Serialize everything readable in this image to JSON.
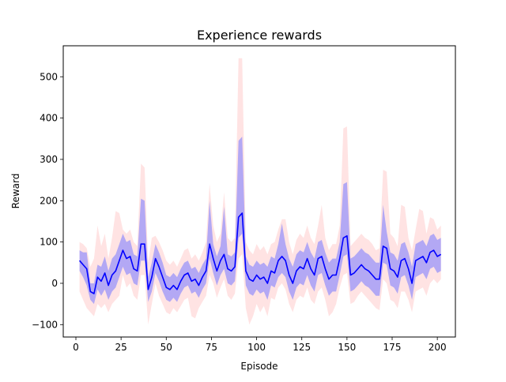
{
  "chart_data": {
    "type": "line",
    "title": "Experience rewards",
    "xlabel": "Episode",
    "ylabel": "Reward",
    "xlim": [
      -7,
      210
    ],
    "ylim": [
      -130,
      575
    ],
    "xticks": [
      0,
      25,
      50,
      75,
      100,
      125,
      150,
      175,
      200
    ],
    "yticks": [
      -100,
      0,
      100,
      200,
      300,
      400,
      500
    ],
    "xticklabels": [
      "0",
      "25",
      "50",
      "75",
      "100",
      "125",
      "150",
      "175",
      "200"
    ],
    "yticklabels": [
      "−100",
      "0",
      "100",
      "200",
      "300",
      "400",
      "500"
    ],
    "grid": false,
    "legend": "none",
    "colors": {
      "mean_line": "#0000ff",
      "std_band": "#8080ff",
      "minmax_band": "#ffc0c0"
    },
    "x": [
      2,
      4,
      6,
      8,
      10,
      12,
      14,
      16,
      18,
      20,
      22,
      24,
      26,
      28,
      30,
      32,
      34,
      36,
      38,
      40,
      42,
      44,
      46,
      48,
      50,
      52,
      54,
      56,
      58,
      60,
      62,
      64,
      66,
      68,
      70,
      72,
      74,
      76,
      78,
      80,
      82,
      84,
      86,
      88,
      90,
      92,
      94,
      96,
      98,
      100,
      102,
      104,
      106,
      108,
      110,
      112,
      114,
      116,
      118,
      120,
      122,
      124,
      126,
      128,
      130,
      132,
      134,
      136,
      138,
      140,
      142,
      144,
      146,
      148,
      150,
      152,
      154,
      156,
      158,
      160,
      162,
      164,
      166,
      168,
      170,
      172,
      174,
      176,
      178,
      180,
      182,
      184,
      186,
      188,
      190,
      192,
      194,
      196,
      198,
      200,
      202
    ],
    "series": [
      {
        "role": "mean",
        "values": [
          55,
          45,
          35,
          -20,
          -25,
          15,
          5,
          25,
          -5,
          20,
          30,
          55,
          80,
          60,
          65,
          35,
          30,
          95,
          95,
          -15,
          15,
          60,
          40,
          15,
          -10,
          -15,
          -5,
          -15,
          5,
          20,
          25,
          5,
          10,
          -5,
          15,
          30,
          95,
          60,
          30,
          55,
          70,
          35,
          30,
          40,
          160,
          170,
          30,
          10,
          5,
          20,
          10,
          15,
          0,
          30,
          25,
          55,
          65,
          55,
          20,
          0,
          30,
          40,
          35,
          60,
          35,
          20,
          60,
          65,
          35,
          10,
          20,
          20,
          60,
          110,
          115,
          20,
          25,
          35,
          45,
          35,
          30,
          20,
          10,
          10,
          90,
          85,
          35,
          30,
          15,
          55,
          60,
          35,
          0,
          55,
          60,
          65,
          50,
          75,
          80,
          65,
          70
        ]
      },
      {
        "role": "std_lower",
        "values": [
          30,
          15,
          -5,
          -40,
          -50,
          -15,
          -30,
          -15,
          -40,
          -20,
          -10,
          15,
          40,
          20,
          25,
          0,
          -5,
          55,
          55,
          -45,
          -20,
          25,
          5,
          -20,
          -40,
          -45,
          -35,
          -45,
          -25,
          -10,
          -5,
          -25,
          -20,
          -35,
          -15,
          0,
          60,
          25,
          -5,
          20,
          35,
          0,
          -5,
          5,
          110,
          120,
          -5,
          -25,
          -30,
          -15,
          -25,
          -20,
          -40,
          -5,
          -10,
          15,
          25,
          15,
          -20,
          -40,
          -10,
          0,
          -5,
          20,
          -5,
          -20,
          20,
          25,
          -5,
          -30,
          -20,
          -20,
          20,
          65,
          70,
          -20,
          -15,
          -5,
          5,
          -5,
          -10,
          -20,
          -30,
          -30,
          50,
          45,
          -5,
          -10,
          -25,
          15,
          20,
          -5,
          -40,
          15,
          20,
          25,
          10,
          35,
          40,
          25,
          30
        ]
      },
      {
        "role": "std_upper",
        "values": [
          80,
          75,
          75,
          0,
          0,
          45,
          40,
          65,
          30,
          60,
          70,
          95,
          120,
          100,
          105,
          70,
          65,
          205,
          200,
          15,
          50,
          95,
          75,
          50,
          20,
          15,
          25,
          15,
          35,
          50,
          55,
          35,
          40,
          25,
          45,
          60,
          200,
          95,
          65,
          90,
          185,
          70,
          65,
          75,
          345,
          355,
          65,
          45,
          40,
          55,
          45,
          50,
          40,
          65,
          60,
          95,
          145,
          95,
          60,
          40,
          70,
          80,
          75,
          100,
          75,
          60,
          100,
          105,
          75,
          50,
          60,
          60,
          100,
          240,
          245,
          60,
          65,
          75,
          85,
          75,
          70,
          60,
          50,
          50,
          190,
          125,
          75,
          70,
          55,
          95,
          100,
          75,
          40,
          95,
          100,
          105,
          90,
          115,
          120,
          105,
          110
        ]
      },
      {
        "role": "min",
        "values": [
          -20,
          -40,
          -60,
          -70,
          -80,
          -50,
          -60,
          -50,
          -70,
          -50,
          -40,
          -30,
          20,
          -10,
          0,
          -30,
          -40,
          20,
          20,
          -100,
          -50,
          0,
          -30,
          -50,
          -70,
          -75,
          -60,
          -70,
          -55,
          -40,
          -35,
          -80,
          -85,
          -60,
          -45,
          -30,
          20,
          0,
          -35,
          -10,
          10,
          -30,
          -40,
          -25,
          60,
          70,
          -60,
          -100,
          -80,
          -50,
          -70,
          -55,
          -80,
          -35,
          -40,
          -10,
          0,
          -15,
          -50,
          -70,
          -40,
          -30,
          -35,
          -10,
          -40,
          -50,
          -20,
          -10,
          -40,
          -80,
          -70,
          -50,
          -10,
          20,
          25,
          -50,
          -45,
          -30,
          -20,
          -30,
          -40,
          -50,
          -60,
          -65,
          10,
          0,
          -40,
          -45,
          -60,
          -20,
          -20,
          -40,
          -70,
          -20,
          -15,
          -10,
          -30,
          0,
          10,
          0,
          10
        ]
      },
      {
        "role": "max",
        "values": [
          100,
          95,
          85,
          40,
          60,
          140,
          90,
          120,
          60,
          110,
          175,
          170,
          130,
          120,
          130,
          100,
          90,
          290,
          280,
          50,
          110,
          115,
          100,
          80,
          55,
          45,
          55,
          40,
          60,
          80,
          85,
          60,
          70,
          55,
          75,
          100,
          240,
          140,
          100,
          120,
          220,
          110,
          100,
          110,
          545,
          545,
          100,
          80,
          70,
          95,
          80,
          90,
          70,
          95,
          100,
          130,
          155,
          155,
          100,
          70,
          105,
          120,
          110,
          140,
          110,
          95,
          140,
          190,
          110,
          80,
          95,
          95,
          140,
          375,
          380,
          90,
          100,
          110,
          120,
          110,
          105,
          95,
          80,
          85,
          275,
          270,
          120,
          110,
          90,
          190,
          185,
          110,
          80,
          130,
          180,
          175,
          120,
          160,
          155,
          130,
          140
        ]
      }
    ]
  }
}
